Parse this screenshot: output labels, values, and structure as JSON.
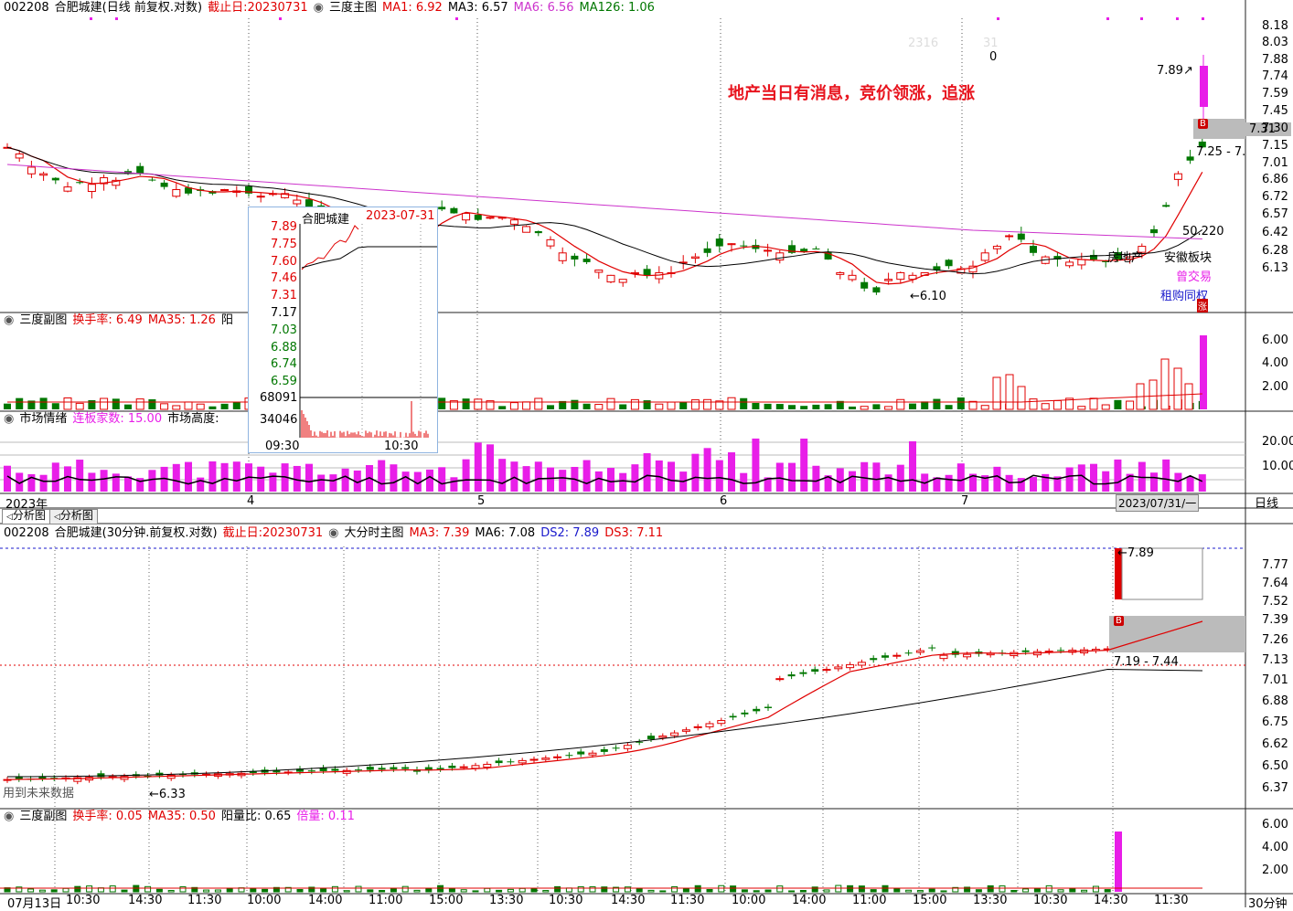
{
  "daily": {
    "header": {
      "code": "002208",
      "title": "合肥城建(日线 前复权.对数)",
      "cutoff": "截止日:20230731",
      "main_label": "三度主图",
      "ma1": "MA1: 6.92",
      "ma3": "MA3: 6.57",
      "ma6": "MA6: 6.56",
      "ma126": "MA126: 1.06"
    },
    "y_ticks": [
      "8.18",
      "8.03",
      "7.88",
      "7.74",
      "7.59",
      "7.45",
      "7.30",
      "7.15",
      "7.01",
      "6.86",
      "6.72",
      "6.57",
      "6.42",
      "6.28",
      "6.13"
    ],
    "annotation": "地产当日有消息，竞价领涨，追涨",
    "price_high": "7.89",
    "price_low": "←6.10",
    "range_label": "7.25 - 7.",
    "current_box": "7.31",
    "tags": [
      "房地产",
      "安徽板块",
      "曾交易",
      "租购同权"
    ],
    "value_50": "50.220",
    "top_nums": [
      "2316",
      "31",
      "0"
    ],
    "zhang": "涨",
    "buy": "B",
    "sub1": {
      "label": "三度副图",
      "turnover": "换手率: 6.49",
      "ma35": "MA35: 1.26",
      "yang": "阳",
      "y_ticks": [
        "6.00",
        "4.00",
        "2.00"
      ]
    },
    "sub2": {
      "label": "市场情绪",
      "lianban": "连板家数: 15.00",
      "height": "市场高度:",
      "y_ticks": [
        "20.00",
        "10.00"
      ]
    },
    "x_labels": [
      "2023年",
      "4",
      "5",
      "6",
      "7",
      "2023/07/31/一"
    ],
    "period": "日线"
  },
  "popup": {
    "name": "合肥城建",
    "date": "2023-07-31",
    "prices": [
      "7.89",
      "7.75",
      "7.60",
      "7.46",
      "7.31",
      "7.17",
      "7.03",
      "6.88",
      "6.74",
      "6.59"
    ],
    "vols": [
      "68091",
      "34046"
    ],
    "times": [
      "09:30",
      "10:30"
    ]
  },
  "tabs": [
    "分析图",
    "分析图"
  ],
  "m30": {
    "header": {
      "code": "002208",
      "title": "合肥城建(30分钟.前复权.对数)",
      "cutoff": "截止日:20230731",
      "main_label": "大分时主图",
      "ma3": "MA3: 7.39",
      "ma6": "MA6: 7.08",
      "ds2": "DS2: 7.89",
      "ds3": "DS3: 7.11"
    },
    "y_ticks": [
      "7.77",
      "7.64",
      "7.52",
      "7.39",
      "7.26",
      "7.13",
      "7.01",
      "6.88",
      "6.75",
      "6.62",
      "6.50",
      "6.37"
    ],
    "high": "7.89",
    "low": "←6.33",
    "range": "7.19 - 7.44",
    "future": "用到未来数据",
    "buy": "B",
    "sub": {
      "label": "三度副图",
      "turnover": "换手率: 0.05",
      "ma35": "MA35: 0.50",
      "yzb": "阳量比: 0.65",
      "beiliang": "倍量: 0.11",
      "y_ticks": [
        "6.00",
        "4.00",
        "2.00"
      ]
    },
    "x_labels": [
      "07月13日",
      "10:30",
      "14:30",
      "11:30",
      "10:00",
      "14:00",
      "11:00",
      "15:00",
      "13:30",
      "10:30",
      "14:30",
      "11:30",
      "10:00",
      "14:00",
      "11:00",
      "15:00",
      "13:30",
      "10:30",
      "14:30",
      "11:30"
    ],
    "period": "30分钟"
  },
  "colors": {
    "up": "#e00000",
    "down": "#007700",
    "pink": "#e81ee8",
    "ma_red": "#e00000",
    "ma_black": "#000000",
    "ma_magenta": "#cc33cc"
  }
}
